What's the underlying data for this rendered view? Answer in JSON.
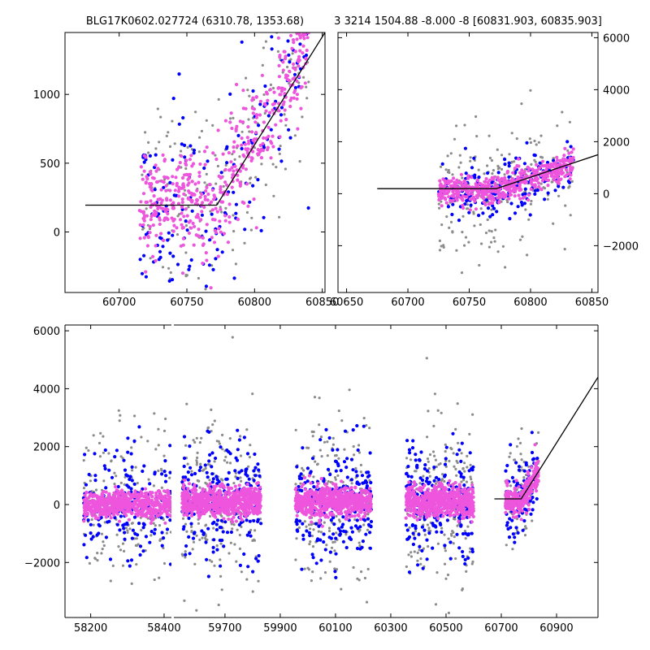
{
  "chart_data": [
    {
      "name": "top-left",
      "type": "scatter",
      "title": "BLG17K0602.027724 (6310.78, 1353.68)",
      "xlim": [
        60660,
        60852
      ],
      "ylim": [
        -440,
        1450
      ],
      "xticks": [
        60700,
        60750,
        60800,
        60850
      ],
      "yticks": [
        0,
        500,
        1000
      ],
      "y_axis_side": "left",
      "colors": {
        "gray": "#8c8c8c",
        "blue": "#0000ff",
        "magenta": "#ee55dd",
        "model": "#000000"
      },
      "model_line": {
        "x": [
          60675,
          60772,
          60852
        ],
        "y": [
          195,
          195,
          1450
        ]
      },
      "clusters": [
        {
          "color": "magenta",
          "count": 520,
          "x_range": [
            60715,
            60840
          ],
          "base": 195,
          "t0": 60772,
          "slope": 17,
          "spread": 200
        },
        {
          "color": "blue",
          "count": 170,
          "x_range": [
            60715,
            60840
          ],
          "base": 195,
          "t0": 60772,
          "slope": 17,
          "spread": 320
        },
        {
          "color": "gray",
          "count": 190,
          "x_range": [
            60715,
            60840
          ],
          "base": 195,
          "t0": 60772,
          "slope": 17,
          "spread": 380
        }
      ]
    },
    {
      "name": "top-right",
      "type": "scatter",
      "title": "3 3214 1504.88 -8.000 -8 [60831.903, 60835.903]",
      "xlim": [
        60643,
        60855
      ],
      "ylim": [
        -3800,
        6200
      ],
      "xticks": [
        60650,
        60700,
        60750,
        60800,
        60850
      ],
      "yticks": [
        -2000,
        0,
        2000,
        4000,
        6000
      ],
      "y_axis_side": "right",
      "model_line": {
        "x": [
          60675,
          60772,
          60855
        ],
        "y": [
          195,
          195,
          1500
        ]
      },
      "clusters": [
        {
          "color": "magenta",
          "count": 520,
          "x_range": [
            60725,
            60835
          ],
          "base": 100,
          "t0": 60772,
          "slope": 17,
          "spread": 260
        },
        {
          "color": "blue",
          "count": 190,
          "x_range": [
            60725,
            60835
          ],
          "base": 100,
          "t0": 60772,
          "slope": 17,
          "spread": 600
        },
        {
          "color": "gray",
          "count": 200,
          "x_range": [
            60725,
            60835
          ],
          "base": 100,
          "t0": 60772,
          "slope": 17,
          "spread": 1200
        }
      ]
    },
    {
      "name": "bottom",
      "type": "scatter",
      "title": "",
      "ylim": [
        -3900,
        6200
      ],
      "yticks": [
        -2000,
        0,
        2000,
        4000,
        6000
      ],
      "y_axis_side": "left",
      "broken_x_axis": true,
      "segments": [
        {
          "xlim": [
            58130,
            58420
          ],
          "xticks": [
            58200,
            58400
          ]
        },
        {
          "xlim": [
            59515,
            61050
          ],
          "xticks": [
            59700,
            59900,
            60100,
            60300,
            60500,
            60700,
            60900
          ]
        }
      ],
      "model_line": {
        "x": [
          60675,
          60772,
          61050
        ],
        "y": [
          195,
          195,
          4400
        ]
      },
      "clusters": [
        {
          "segment": 0,
          "color": "magenta",
          "count": 650,
          "x_range": [
            58180,
            58420
          ],
          "base": 0,
          "spread": 220
        },
        {
          "segment": 0,
          "color": "blue",
          "count": 190,
          "x_range": [
            58180,
            58420
          ],
          "base": 0,
          "spread": 900
        },
        {
          "segment": 0,
          "color": "gray",
          "count": 170,
          "x_range": [
            58180,
            58420
          ],
          "base": 0,
          "spread": 1400
        },
        {
          "segment": 1,
          "color": "magenta",
          "count": 750,
          "x_range": [
            59545,
            59830
          ],
          "base": 100,
          "spread": 250
        },
        {
          "segment": 1,
          "color": "blue",
          "count": 230,
          "x_range": [
            59545,
            59830
          ],
          "base": 100,
          "spread": 950
        },
        {
          "segment": 1,
          "color": "gray",
          "count": 200,
          "x_range": [
            59545,
            59830
          ],
          "base": 100,
          "spread": 1500
        },
        {
          "segment": 1,
          "color": "magenta",
          "count": 700,
          "x_range": [
            59955,
            60230
          ],
          "base": 100,
          "spread": 250
        },
        {
          "segment": 1,
          "color": "blue",
          "count": 230,
          "x_range": [
            59955,
            60230
          ],
          "base": 100,
          "spread": 950
        },
        {
          "segment": 1,
          "color": "gray",
          "count": 200,
          "x_range": [
            59955,
            60230
          ],
          "base": 100,
          "spread": 1500
        },
        {
          "segment": 1,
          "color": "magenta",
          "count": 650,
          "x_range": [
            60355,
            60600
          ],
          "base": 100,
          "spread": 250
        },
        {
          "segment": 1,
          "color": "blue",
          "count": 230,
          "x_range": [
            60355,
            60600
          ],
          "base": 100,
          "spread": 950
        },
        {
          "segment": 1,
          "color": "gray",
          "count": 200,
          "x_range": [
            60355,
            60600
          ],
          "base": 100,
          "spread": 1500
        },
        {
          "segment": 1,
          "color": "magenta",
          "count": 260,
          "x_range": [
            60715,
            60835
          ],
          "base": 100,
          "t0": 60772,
          "slope": 17,
          "spread": 260
        },
        {
          "segment": 1,
          "color": "blue",
          "count": 90,
          "x_range": [
            60715,
            60835
          ],
          "base": 100,
          "t0": 60772,
          "slope": 17,
          "spread": 700
        },
        {
          "segment": 1,
          "color": "gray",
          "count": 90,
          "x_range": [
            60715,
            60835
          ],
          "base": 100,
          "t0": 60772,
          "slope": 17,
          "spread": 1100
        }
      ]
    }
  ]
}
